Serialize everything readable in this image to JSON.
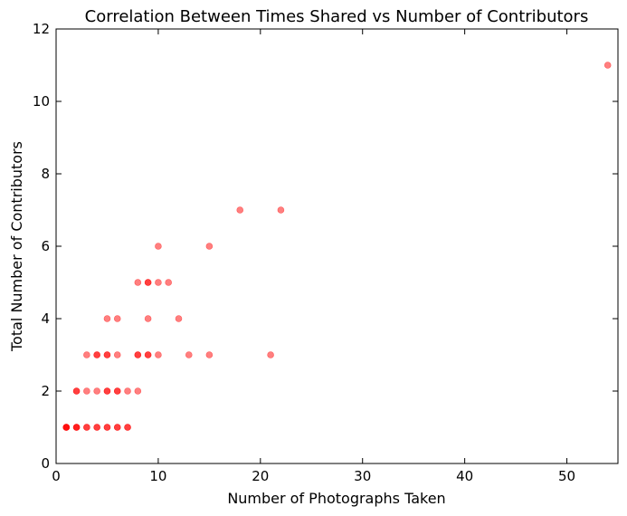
{
  "chart_data": {
    "type": "scatter",
    "title": "Correlation Between Times Shared vs Number of Contributors",
    "xlabel": "Number of Photographs Taken",
    "ylabel": "Total Number of Contributors",
    "xlim": [
      0,
      55
    ],
    "ylim": [
      0,
      12
    ],
    "xticks": [
      0,
      10,
      20,
      30,
      40,
      50
    ],
    "yticks": [
      0,
      2,
      4,
      6,
      8,
      10,
      12
    ],
    "grid": false,
    "marker_color": "#ff0000",
    "marker_opacity": 0.5,
    "series": [
      {
        "x": [
          1,
          1,
          1,
          1,
          2,
          2,
          2,
          3,
          3,
          4,
          4,
          5,
          5,
          6,
          6,
          7,
          7,
          2,
          2,
          3,
          4,
          5,
          5,
          6,
          6,
          7,
          8,
          3,
          4,
          4,
          5,
          5,
          6,
          8,
          8,
          9,
          9,
          10,
          13,
          15,
          21,
          5,
          6,
          9,
          12,
          8,
          9,
          9,
          10,
          11,
          10,
          15,
          18,
          22,
          54
        ],
        "y": [
          1,
          1,
          1,
          1,
          1,
          1,
          1,
          1,
          1,
          1,
          1,
          1,
          1,
          1,
          1,
          1,
          1,
          2,
          2,
          2,
          2,
          2,
          2,
          2,
          2,
          2,
          2,
          3,
          3,
          3,
          3,
          3,
          3,
          3,
          3,
          3,
          3,
          3,
          3,
          3,
          3,
          4,
          4,
          4,
          4,
          5,
          5,
          5,
          5,
          5,
          6,
          6,
          7,
          7,
          11
        ]
      }
    ]
  }
}
